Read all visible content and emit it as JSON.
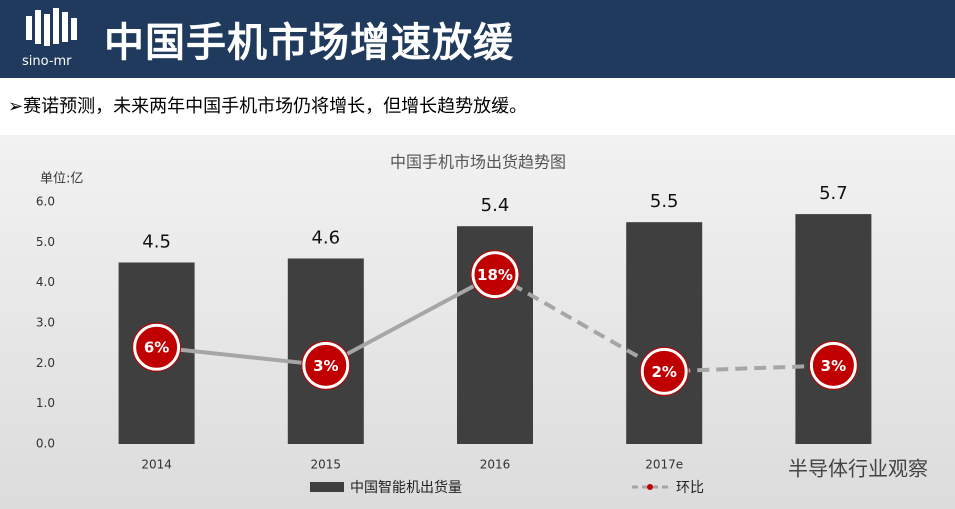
{
  "header": {
    "logo": "sino-mr",
    "title": "中国手机市场增速放缓"
  },
  "bullet": "➢赛诺预测，未来两年中国手机市场仍将增长，但增长趋势放缓。",
  "watermark": "半导体行业观察",
  "chart_data": {
    "type": "bar",
    "title": "中国手机市场出货趋势图",
    "y_label": "单位:亿",
    "categories": [
      "2014",
      "2015",
      "2016",
      "2017e",
      null
    ],
    "series": [
      {
        "name": "中国智能机出货量",
        "color": "#3f3f3f",
        "values": [
          4.5,
          4.6,
          5.4,
          5.5,
          5.7
        ]
      },
      {
        "name": "环比",
        "type": "line",
        "axis": "y2",
        "color": "#a6a6a6",
        "marker_color": "#c00000",
        "values": [
          6,
          3,
          18,
          2,
          3
        ],
        "value_labels": [
          "6%",
          "3%",
          "18%",
          "2%",
          "3%"
        ]
      }
    ],
    "ylim": [
      0,
      6
    ],
    "yticks": [
      {
        "value": 0,
        "label": "0.0"
      },
      {
        "value": 1,
        "label": "1.0"
      },
      {
        "value": 2,
        "label": "2.0"
      },
      {
        "value": 3,
        "label": "3.0"
      },
      {
        "value": 4,
        "label": "4.0"
      },
      {
        "value": 5,
        "label": "5.0"
      },
      {
        "value": 6,
        "label": "6.0"
      }
    ],
    "y2lim": [
      -10,
      30
    ],
    "grid": false
  }
}
